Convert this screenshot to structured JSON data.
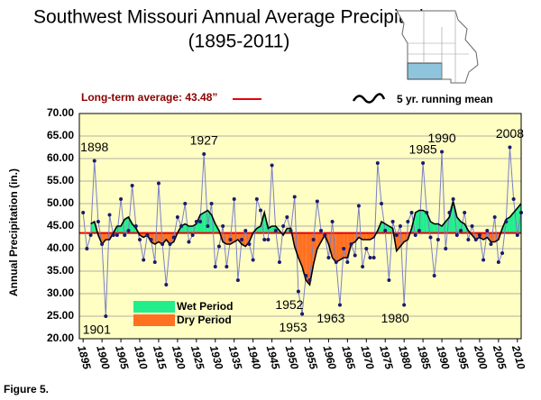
{
  "chart_data": {
    "type": "line",
    "title": "Southwest Missouri Annual Average Precipitation",
    "subtitle": "(1895-2011)",
    "y_label": "Annual Precipitation (in.)",
    "figure_label": "Figure 5.",
    "x": [
      1895,
      1896,
      1897,
      1898,
      1899,
      1900,
      1901,
      1902,
      1903,
      1904,
      1905,
      1906,
      1907,
      1908,
      1909,
      1910,
      1911,
      1912,
      1913,
      1914,
      1915,
      1916,
      1917,
      1918,
      1919,
      1920,
      1921,
      1922,
      1923,
      1924,
      1925,
      1926,
      1927,
      1928,
      1929,
      1930,
      1931,
      1932,
      1933,
      1934,
      1935,
      1936,
      1937,
      1938,
      1939,
      1940,
      1941,
      1942,
      1943,
      1944,
      1945,
      1946,
      1947,
      1948,
      1949,
      1950,
      1951,
      1952,
      1953,
      1954,
      1955,
      1956,
      1957,
      1958,
      1959,
      1960,
      1961,
      1962,
      1963,
      1964,
      1965,
      1966,
      1967,
      1968,
      1969,
      1970,
      1971,
      1972,
      1973,
      1974,
      1975,
      1976,
      1977,
      1978,
      1979,
      1980,
      1981,
      1982,
      1983,
      1984,
      1985,
      1986,
      1987,
      1988,
      1989,
      1990,
      1991,
      1992,
      1993,
      1994,
      1995,
      1996,
      1997,
      1998,
      1999,
      2000,
      2001,
      2002,
      2003,
      2004,
      2005,
      2006,
      2007,
      2008,
      2009,
      2010,
      2011
    ],
    "xlim": [
      1894,
      2011
    ],
    "xticks": [
      1895,
      1900,
      1905,
      1910,
      1915,
      1920,
      1925,
      1930,
      1935,
      1940,
      1945,
      1950,
      1955,
      1960,
      1965,
      1970,
      1975,
      1980,
      1985,
      1990,
      1995,
      2000,
      2005,
      2010
    ],
    "ylim": [
      20,
      70
    ],
    "yticks": [
      {
        "value": 20,
        "label": "20.00"
      },
      {
        "value": 25,
        "label": "25.00"
      },
      {
        "value": 30,
        "label": "30.00"
      },
      {
        "value": 35,
        "label": "35.00"
      },
      {
        "value": 40,
        "label": "40.00"
      },
      {
        "value": 45,
        "label": "45.00"
      },
      {
        "value": 50,
        "label": "50.00"
      },
      {
        "value": 55,
        "label": "55.00"
      },
      {
        "value": 60,
        "label": "60.00"
      },
      {
        "value": 65,
        "label": "65.00"
      },
      {
        "value": 70,
        "label": "70.00"
      }
    ],
    "grid": true,
    "series": [
      {
        "color": "#1a1a6e",
        "values": [
          48,
          40,
          43,
          59.5,
          46,
          41,
          25,
          47.5,
          43,
          43,
          51,
          43,
          44,
          54,
          45,
          42,
          37.5,
          43,
          42,
          37,
          54.5,
          41,
          32,
          41,
          42.5,
          47,
          45,
          50,
          41.5,
          43,
          46,
          46,
          61,
          45,
          50,
          36,
          40.5,
          45,
          36,
          42,
          51,
          33,
          42,
          44,
          41,
          37.5,
          51,
          48.5,
          42,
          42,
          58.5,
          44,
          37,
          45,
          47,
          44,
          51.5,
          30.5,
          25.5,
          34,
          33,
          42,
          50.5,
          44,
          43,
          38,
          46,
          37,
          27.5,
          40,
          37,
          41,
          38.5,
          49.5,
          36,
          40,
          38,
          38,
          59,
          50,
          44,
          33,
          46,
          43,
          45,
          27.5,
          46,
          48,
          43,
          44,
          59,
          48,
          42.5,
          34,
          42,
          61.5,
          40,
          48,
          51,
          43,
          44,
          48,
          42,
          45,
          42,
          43,
          37.5,
          44,
          41,
          47,
          37,
          39,
          46,
          62.5,
          51,
          43,
          48
        ]
      },
      {
        "name": "5 yr. running mean",
        "color": "#000000",
        "values": [
          null,
          null,
          45.5,
          46,
          43,
          41,
          42,
          42,
          43.5,
          45,
          45,
          46.5,
          47,
          45.5,
          44.5,
          43,
          42.5,
          43,
          41.5,
          41,
          41.5,
          41,
          42,
          41,
          41.5,
          43.5,
          45,
          45.5,
          45,
          45,
          45.5,
          47.5,
          48,
          48.5,
          47.5,
          45.5,
          44,
          41.5,
          41,
          41,
          41.5,
          42,
          41,
          40.5,
          41.5,
          43.5,
          44.5,
          45,
          48,
          44.5,
          45,
          45,
          44,
          43,
          44.5,
          44.5,
          40.5,
          38,
          36,
          33,
          32,
          36.5,
          40,
          41.5,
          43,
          41,
          38,
          37,
          37.5,
          38,
          38,
          41,
          41.5,
          42.5,
          42,
          42,
          42,
          42.5,
          44,
          46,
          45.5,
          45,
          44.5,
          39.5,
          40.5,
          41.5,
          42,
          44.5,
          48,
          48.5,
          48.5,
          48,
          46,
          45.5,
          45.5,
          45,
          46,
          47,
          50.5,
          47,
          46,
          45.5,
          44,
          43,
          42,
          42.5,
          42,
          42.5,
          41.5,
          41.5,
          42,
          44.5,
          46.5,
          47,
          48,
          49,
          50
        ]
      }
    ],
    "average": {
      "value": 43.48,
      "label": "Long-term average: 43.48”",
      "color": "#e8000b"
    },
    "periods": [
      {
        "name": "Wet Period",
        "color": "#22ee8c"
      },
      {
        "name": "Dry Period",
        "color": "#ff7020"
      }
    ],
    "annotations": [
      {
        "text": "1898",
        "x": 1898
      },
      {
        "text": "1901",
        "x": 1901
      },
      {
        "text": "1927",
        "x": 1927
      },
      {
        "text": "1952",
        "x": 1952
      },
      {
        "text": "1953",
        "x": 1953
      },
      {
        "text": "1963",
        "x": 1963
      },
      {
        "text": "1980",
        "x": 1980
      },
      {
        "text": "1985",
        "x": 1985
      },
      {
        "text": "1990",
        "x": 1990
      },
      {
        "text": "2008",
        "x": 2008
      }
    ]
  }
}
